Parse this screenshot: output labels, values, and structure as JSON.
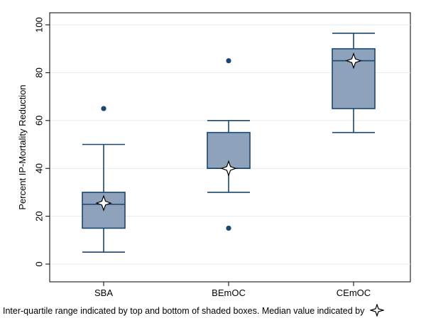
{
  "chart_data": {
    "type": "box",
    "title": "",
    "xlabel": "",
    "ylabel": "Percent IP-Mortality Reduction",
    "ylim": [
      0,
      100
    ],
    "yticks": [
      0,
      20,
      40,
      60,
      80,
      100
    ],
    "grid": true,
    "categories": [
      "SBA",
      "BEmOC",
      "CEmOC"
    ],
    "boxes": [
      {
        "category": "SBA",
        "whisker_low": 5,
        "q1": 15,
        "median": 25,
        "q3": 30,
        "whisker_high": 50,
        "outliers": [
          65
        ],
        "marker": 25.5
      },
      {
        "category": "BEmOC",
        "whisker_low": 30,
        "q1": 40,
        "median": 40,
        "q3": 55,
        "whisker_high": 60,
        "outliers": [
          15,
          85
        ],
        "marker": 40
      },
      {
        "category": "CEmOC",
        "whisker_low": 55,
        "q1": 65,
        "median": 85,
        "q3": 90,
        "whisker_high": 96.5,
        "outliers": [],
        "marker": 85
      }
    ],
    "box_color": "#8fa2bc",
    "line_color": "#1a476f"
  },
  "caption": {
    "text": "Inter-quartile range indicated by top and bottom of shaded boxes.  Median value indicated by",
    "marker_icon": "four-point-star-icon"
  }
}
